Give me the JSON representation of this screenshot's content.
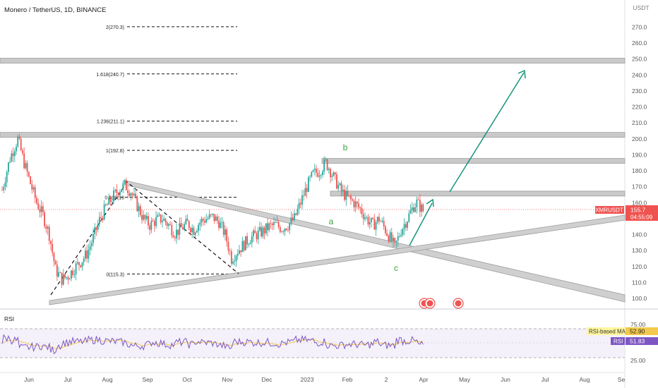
{
  "header": {
    "title": "Monero / TetherUS, 1D, BINANCE"
  },
  "chart_data": {
    "type": "candlestick",
    "title": "Monero / TetherUS, 1D, BINANCE",
    "currency": "USDT",
    "y_ticks": [
      "270.0",
      "260.0",
      "250.0",
      "240.0",
      "230.0",
      "220.0",
      "210.0",
      "200.0",
      "190.0",
      "180.0",
      "170.0",
      "160.0",
      "150.0",
      "140.0",
      "130.0",
      "120.0",
      "110.0",
      "100.0"
    ],
    "y_tick_values": [
      270,
      260,
      250,
      240,
      230,
      220,
      210,
      200,
      190,
      180,
      170,
      160,
      150,
      140,
      130,
      120,
      110,
      100
    ],
    "ylim": [
      96,
      288
    ],
    "x_ticks": [
      "Jun",
      "Jul",
      "Aug",
      "Sep",
      "Oct",
      "Nov",
      "Dec",
      "2023",
      "Feb",
      "2",
      "Apr",
      "May",
      "Jun",
      "Jul",
      "Aug",
      "Se"
    ],
    "price": {
      "symbol": "XMRUSDT",
      "last": "155.7",
      "countdown": "04:55:09",
      "last_value": 155.7,
      "path": [
        [
          0,
          168
        ],
        [
          5,
          188
        ],
        [
          10,
          200
        ],
        [
          14,
          185
        ],
        [
          18,
          172
        ],
        [
          22,
          160
        ],
        [
          26,
          152
        ],
        [
          30,
          140
        ],
        [
          34,
          118
        ],
        [
          38,
          112
        ],
        [
          42,
          114
        ],
        [
          46,
          119
        ],
        [
          50,
          123
        ],
        [
          54,
          128
        ],
        [
          58,
          138
        ],
        [
          62,
          149
        ],
        [
          66,
          157
        ],
        [
          70,
          163
        ],
        [
          74,
          168
        ],
        [
          78,
          171
        ],
        [
          82,
          167
        ],
        [
          86,
          158
        ],
        [
          90,
          150
        ],
        [
          94,
          146
        ],
        [
          98,
          149
        ],
        [
          102,
          150
        ],
        [
          106,
          146
        ],
        [
          110,
          141
        ],
        [
          114,
          144
        ],
        [
          118,
          147
        ],
        [
          122,
          143
        ],
        [
          126,
          148
        ],
        [
          130,
          150
        ],
        [
          134,
          151
        ],
        [
          138,
          148
        ],
        [
          142,
          140
        ],
        [
          146,
          125
        ],
        [
          150,
          130
        ],
        [
          154,
          134
        ],
        [
          158,
          138
        ],
        [
          162,
          140
        ],
        [
          166,
          142
        ],
        [
          170,
          145
        ],
        [
          174,
          146
        ],
        [
          178,
          144
        ],
        [
          182,
          146
        ],
        [
          186,
          150
        ],
        [
          190,
          160
        ],
        [
          194,
          170
        ],
        [
          198,
          178
        ],
        [
          202,
          180
        ],
        [
          206,
          185
        ],
        [
          208,
          182
        ],
        [
          212,
          174
        ],
        [
          216,
          167
        ],
        [
          220,
          163
        ],
        [
          224,
          160
        ],
        [
          228,
          156
        ],
        [
          232,
          150
        ],
        [
          236,
          146
        ],
        [
          240,
          150
        ],
        [
          244,
          143
        ],
        [
          248,
          136
        ],
        [
          250,
          132
        ],
        [
          254,
          143
        ],
        [
          258,
          150
        ],
        [
          262,
          158
        ],
        [
          264,
          160
        ],
        [
          268,
          155
        ]
      ]
    },
    "levels": [
      {
        "label": "2(270.3)",
        "value": 270.3
      },
      {
        "label": "1.618(240.7)",
        "value": 240.7
      },
      {
        "label": "1.236(211.1)",
        "value": 211.1
      },
      {
        "label": "1(192.8)",
        "value": 192.8
      },
      {
        "label": "0.618(16",
        "value": 163.4
      },
      {
        "label": "0(115.3)",
        "value": 115.3
      }
    ],
    "zones": [
      {
        "value": 249
      },
      {
        "value": 202.5
      },
      {
        "value": 186.2
      },
      {
        "value": 165.7
      }
    ],
    "wave_labels": [
      "b",
      "a",
      "c"
    ],
    "rsi": {
      "title": "RSI",
      "ticks": [
        "75.00",
        "25.00"
      ],
      "tick_values": [
        75,
        25
      ],
      "ma_label": "RSI-based MA",
      "ma_value": "52.90",
      "rsi_label": "RSI",
      "rsi_value": "51.83"
    }
  },
  "colors": {
    "up": "#26a69a",
    "down": "#ef5350",
    "arrow": "#0b8f74",
    "zone": "#c9c9c9",
    "rsi": "#7e57c2",
    "rsi_ma": "#f2c94c",
    "label_red": "#ef5350"
  }
}
